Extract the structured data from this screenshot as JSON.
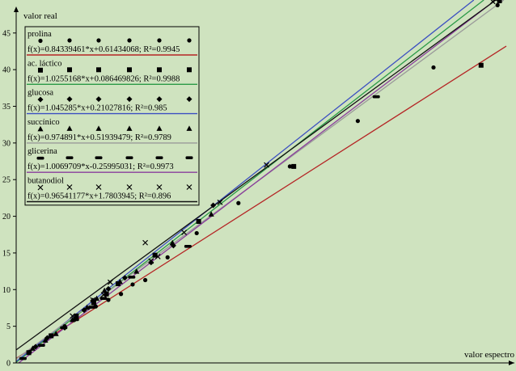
{
  "chart_data": {
    "type": "scatter",
    "xlabel": "valor espectro",
    "ylabel": "valor real",
    "xlim": [
      0,
      50.5
    ],
    "ylim": [
      0,
      49.5
    ],
    "yticks": [
      "0",
      "5",
      "10",
      "15",
      "20",
      "25",
      "30",
      "35",
      "40",
      "45"
    ],
    "grid": false,
    "legend_position": "top-left",
    "background": "#cfe3bf",
    "series": [
      {
        "name": "prolina",
        "marker": "circle",
        "equation": "f(x)=0.84339461*x+0.61434068; R²=0.9945",
        "line_color": "#b52525",
        "slope": 0.84339461,
        "intercept": 0.61434068,
        "points": [
          [
            1.4,
            1.5
          ],
          [
            5.0,
            5.0
          ],
          [
            8.2,
            7.7
          ],
          [
            9.5,
            8.6
          ],
          [
            10.8,
            9.4
          ],
          [
            12.0,
            10.7
          ],
          [
            13.3,
            11.3
          ],
          [
            15.6,
            14.4
          ],
          [
            18.6,
            17.7
          ],
          [
            22.9,
            21.8
          ],
          [
            28.2,
            26.8
          ],
          [
            35.2,
            33.0
          ],
          [
            43.0,
            40.3
          ],
          [
            49.6,
            48.8
          ]
        ]
      },
      {
        "name": "ac. láctico",
        "marker": "square",
        "equation": "f(x)=1.0255168*x+0.086469826; R²=0.9988",
        "line_color": "#2a9a46",
        "slope": 1.0255168,
        "intercept": 0.086469826,
        "points": [
          [
            1.3,
            1.4
          ],
          [
            3.6,
            3.7
          ],
          [
            6.2,
            6.4
          ],
          [
            8.0,
            8.2
          ],
          [
            9.3,
            9.4
          ],
          [
            10.5,
            10.8
          ],
          [
            14.3,
            14.7
          ],
          [
            18.8,
            19.3
          ],
          [
            28.6,
            26.8
          ],
          [
            47.9,
            40.6
          ],
          [
            49.8,
            49.4
          ]
        ]
      },
      {
        "name": "glucosa",
        "marker": "diamond",
        "equation": "f(x)=1.045285*x+0.21027816; R²=0.985",
        "line_color": "#3c4fc1",
        "slope": 1.045285,
        "intercept": 0.21027816,
        "points": [
          [
            2.0,
            2.2
          ],
          [
            3.2,
            3.4
          ],
          [
            5.0,
            4.8
          ],
          [
            6.1,
            6.0
          ],
          [
            7.0,
            7.2
          ],
          [
            7.9,
            8.5
          ],
          [
            9.5,
            10.1
          ],
          [
            11.2,
            11.6
          ],
          [
            13.9,
            13.7
          ],
          [
            16.2,
            16.0
          ],
          [
            20.3,
            21.5
          ]
        ]
      },
      {
        "name": "succínico",
        "marker": "triangle",
        "equation": "f(x)=0.974891*x+0.51939479; R²=0.9789",
        "line_color": "#9a9a9a",
        "slope": 0.974891,
        "intercept": 0.51939479,
        "points": [
          [
            1.7,
            2.0
          ],
          [
            3.0,
            3.1
          ],
          [
            4.1,
            4.0
          ],
          [
            5.8,
            5.9
          ],
          [
            7.3,
            7.6
          ],
          [
            8.3,
            8.8
          ],
          [
            9.1,
            9.9
          ],
          [
            10.7,
            11.1
          ],
          [
            12.4,
            12.5
          ],
          [
            16.1,
            16.4
          ],
          [
            20.1,
            20.3
          ]
        ]
      },
      {
        "name": "glicerina",
        "marker": "dash",
        "equation": "f(x)=1.0069709*x-0.25995031; R²=0.9973",
        "line_color": "#8a3d9c",
        "slope": 1.0069709,
        "intercept": -0.25995031,
        "points": [
          [
            0.7,
            0.6
          ],
          [
            2.6,
            2.4
          ],
          [
            4.9,
            4.8
          ],
          [
            6.1,
            5.9
          ],
          [
            7.8,
            7.6
          ],
          [
            9.0,
            8.8
          ],
          [
            11.9,
            11.7
          ],
          [
            17.7,
            15.9
          ],
          [
            37.1,
            36.3
          ],
          [
            49.6,
            49.6
          ]
        ]
      },
      {
        "name": "butanodiol",
        "marker": "cross",
        "equation": "f(x)=0.96541177*x+1.7803945; R²=0.896",
        "line_color": "#111111",
        "slope": 0.96541177,
        "intercept": 1.7803945,
        "points": [
          [
            5.8,
            6.4
          ],
          [
            7.9,
            8.6
          ],
          [
            9.0,
            9.3
          ],
          [
            9.7,
            11.0
          ],
          [
            13.3,
            16.4
          ],
          [
            13.9,
            13.9
          ],
          [
            14.6,
            14.5
          ],
          [
            17.3,
            17.8
          ],
          [
            21.0,
            21.9
          ],
          [
            25.8,
            27.0
          ],
          [
            49.1,
            49.3
          ]
        ]
      }
    ]
  }
}
